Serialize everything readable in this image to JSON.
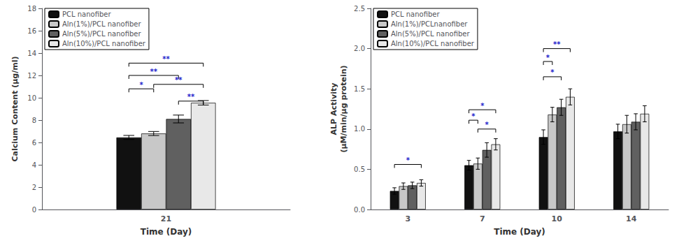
{
  "chart_data": [
    {
      "type": "bar",
      "xlabel": "Time (Day)",
      "ylabel": "Calcium Content (μg/ml)",
      "categories": [
        "21"
      ],
      "series": [
        {
          "name": "PCL nanofiber",
          "color": "#111111",
          "values": [
            6.45
          ],
          "errors": [
            0.18
          ]
        },
        {
          "name": "Aln(1%)/PCL nanofiber",
          "color": "#c8c8c8",
          "values": [
            6.8
          ],
          "errors": [
            0.18
          ]
        },
        {
          "name": "Aln(5%)/PCL nanofiber",
          "color": "#606060",
          "values": [
            8.1
          ],
          "errors": [
            0.35
          ]
        },
        {
          "name": "Aln(10%)/PCL nanofiber",
          "color": "#e8e8e8",
          "values": [
            9.55
          ],
          "errors": [
            0.2
          ]
        }
      ],
      "ylim": [
        0,
        18
      ],
      "yticks": [
        0,
        2,
        4,
        6,
        8,
        10,
        12,
        14,
        16,
        18
      ],
      "grid": false,
      "legend": "upper left",
      "annotations": [
        {
          "category": 0,
          "from": 0,
          "to": 3,
          "y": 13.1,
          "label": "**"
        },
        {
          "category": 0,
          "from": 0,
          "to": 2,
          "y": 12.0,
          "label": "**"
        },
        {
          "category": 0,
          "from": 0,
          "to": 1,
          "y": 10.8,
          "label": "*"
        },
        {
          "category": 0,
          "from": 1,
          "to": 3,
          "y": 11.2,
          "label": "**"
        },
        {
          "category": 0,
          "from": 2,
          "to": 3,
          "y": 9.7,
          "label": "**"
        }
      ]
    },
    {
      "type": "bar",
      "xlabel": "Time (Day)",
      "ylabel": "ALP Activity\n(μM/min/μg protein)",
      "categories": [
        "3",
        "7",
        "10",
        "14"
      ],
      "series": [
        {
          "name": "PCL nanofiber",
          "color": "#111111",
          "values": [
            0.23,
            0.55,
            0.9,
            0.97
          ],
          "errors": [
            0.04,
            0.06,
            0.09,
            0.09
          ]
        },
        {
          "name": "Aln(1%)/PCLnanofiber",
          "color": "#c8c8c8",
          "values": [
            0.29,
            0.57,
            1.18,
            1.06
          ],
          "errors": [
            0.04,
            0.07,
            0.09,
            0.11
          ]
        },
        {
          "name": "Aln(5%)/PCL nanofiber",
          "color": "#606060",
          "values": [
            0.3,
            0.74,
            1.27,
            1.09
          ],
          "errors": [
            0.04,
            0.09,
            0.1,
            0.1
          ]
        },
        {
          "name": "Aln(10%)/PCL nanofiber",
          "color": "#e8e8e8",
          "values": [
            0.33,
            0.81,
            1.4,
            1.19
          ],
          "errors": [
            0.04,
            0.07,
            0.1,
            0.1
          ]
        }
      ],
      "ylim": [
        0,
        2.5
      ],
      "yticks": [
        {
          "value": 0,
          "label": "0.0"
        },
        0.5,
        {
          "value": 1,
          "label": "1.0"
        },
        1.5,
        {
          "value": 2,
          "label": "2.0"
        },
        2.5
      ],
      "grid": false,
      "legend": "upper left",
      "annotations": [
        {
          "category": 0,
          "from": 0,
          "to": 3,
          "y": 0.56,
          "label": "*"
        },
        {
          "category": 1,
          "from": 0,
          "to": 3,
          "y": 1.24,
          "label": "*"
        },
        {
          "category": 1,
          "from": 0,
          "to": 1,
          "y": 1.11,
          "label": "*"
        },
        {
          "category": 1,
          "from": 1,
          "to": 3,
          "y": 1.0,
          "label": "*"
        },
        {
          "category": 2,
          "from": 0,
          "to": 3,
          "y": 2.0,
          "label": "**"
        },
        {
          "category": 2,
          "from": 0,
          "to": 1,
          "y": 1.84,
          "label": "*"
        },
        {
          "category": 2,
          "from": 0,
          "to": 2,
          "y": 1.65,
          "label": "*"
        }
      ]
    }
  ]
}
